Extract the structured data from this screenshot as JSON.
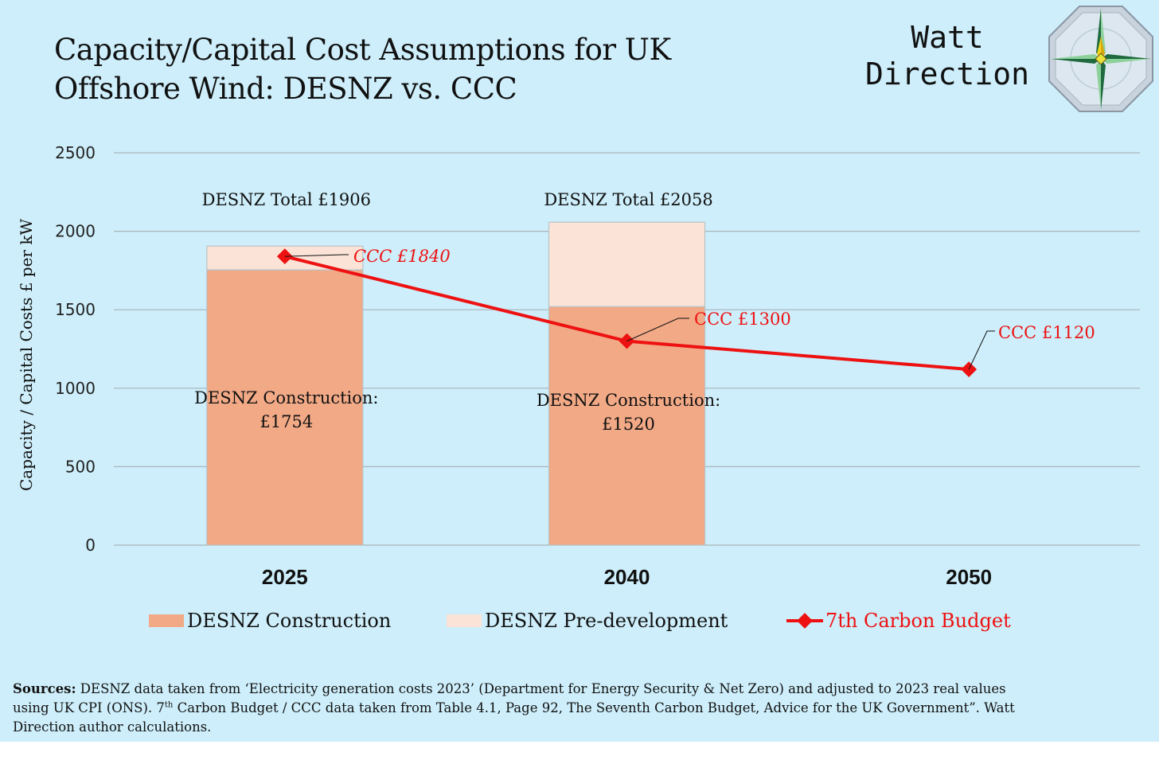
{
  "header": {
    "title_line1": "Capacity/Capital Cost Assumptions for UK",
    "title_line2": "Offshore Wind: DESNZ vs. CCC",
    "brand_line1": "Watt",
    "brand_line2": "Direction",
    "logo_icon": "compass-rose-icon"
  },
  "colors": {
    "background": "#cdeefa",
    "construction": "#f1a986",
    "predevelopment": "#fbe3d8",
    "ccc_line": "#ee1111",
    "grid": "#a8b4bb"
  },
  "chart_data": {
    "type": "bar",
    "stacked": true,
    "title": "Capacity/Capital Cost Assumptions for UK Offshore Wind: DESNZ vs. CCC",
    "ylabel": "Capacity / Capital Costs £ per kW",
    "xlabel": "",
    "ylim": [
      0,
      2500
    ],
    "yticks": [
      0,
      500,
      1000,
      1500,
      2000,
      2500
    ],
    "ytick_labels": [
      "0",
      "500",
      "1000",
      "1500",
      "2000",
      "2500"
    ],
    "categories": [
      "2025",
      "2040",
      "2050"
    ],
    "series": [
      {
        "name": "DESNZ Construction",
        "kind": "bar",
        "values": [
          1754,
          1520,
          null
        ]
      },
      {
        "name": "DESNZ Pre-development",
        "kind": "bar",
        "values": [
          152,
          538,
          null
        ]
      },
      {
        "name": "7th Carbon Budget",
        "kind": "line",
        "values": [
          1840,
          1300,
          1120
        ]
      }
    ],
    "legend": [
      "DESNZ Construction",
      "DESNZ Pre-development",
      "7th Carbon Budget"
    ],
    "legend_position": "bottom",
    "annotations": {
      "totals": [
        "DESNZ Total £1906",
        "DESNZ Total £2058"
      ],
      "construction_labels": [
        [
          "DESNZ Construction:",
          "£1754"
        ],
        [
          "DESNZ Construction:",
          "£1520"
        ]
      ],
      "ccc_labels": [
        "CCC £1840",
        "CCC £1300",
        "CCC £1120"
      ]
    }
  },
  "sources": {
    "label": "Sources:",
    "line1": "DESNZ data taken from ‘Electricity generation costs 2023’ (Department for Energy Security & Net Zero) and adjusted to 2023 real values",
    "line2_a": "using UK CPI (ONS).  7",
    "line2_sup": "th",
    "line2_b": " Carbon Budget / CCC data taken from Table 4.1, Page 92, The Seventh Carbon Budget, Advice for the UK Government”. Watt",
    "line3": "Direction author calculations."
  }
}
